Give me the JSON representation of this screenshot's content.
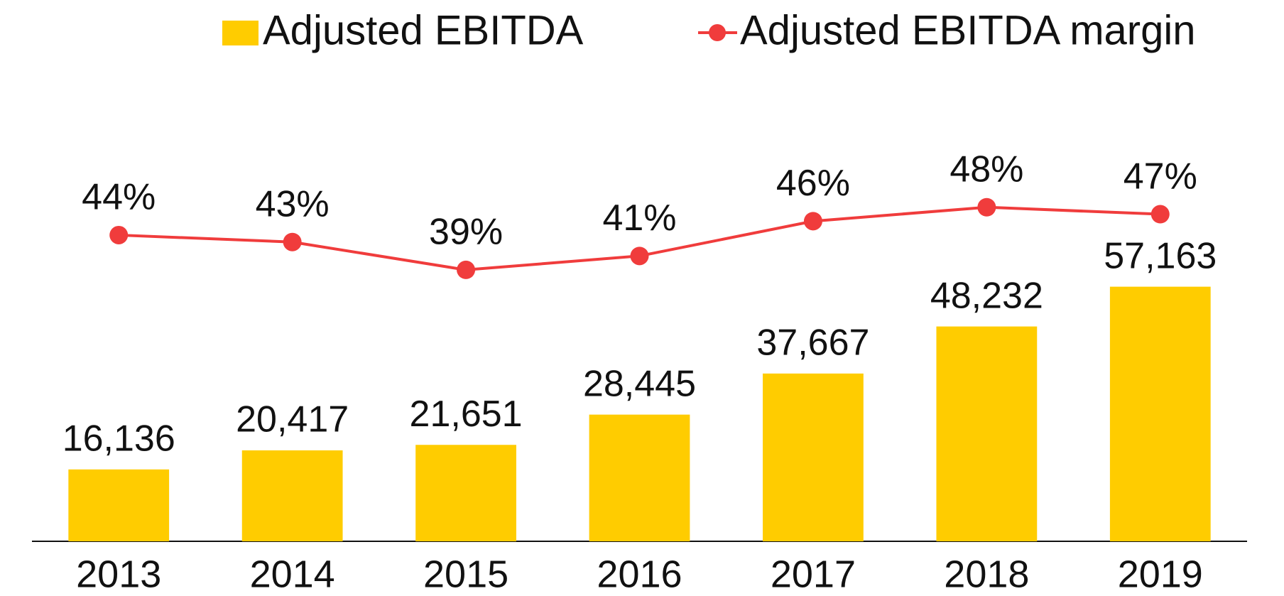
{
  "chart_data": {
    "type": "bar-line",
    "categories": [
      "2013",
      "2014",
      "2015",
      "2016",
      "2017",
      "2018",
      "2019"
    ],
    "series": [
      {
        "name": "Adjusted EBITDA",
        "type": "bar",
        "color": "#ffcc00",
        "values": [
          16136,
          20417,
          21651,
          28445,
          37667,
          48232,
          57163
        ],
        "value_labels": [
          "16,136",
          "20,417",
          "21,651",
          "28,445",
          "37,667",
          "48,232",
          "57,163"
        ]
      },
      {
        "name": "Adjusted EBITDA margin",
        "type": "line",
        "axis": "y2",
        "color": "#f03c3c",
        "values": [
          44,
          43,
          39,
          41,
          46,
          48,
          47
        ],
        "value_labels": [
          "44%",
          "43%",
          "39%",
          "41%",
          "46%",
          "48%",
          "47%"
        ]
      }
    ],
    "ylim": [
      0,
      100000
    ],
    "y2lim": [
      0,
      64
    ],
    "legend": "top"
  }
}
